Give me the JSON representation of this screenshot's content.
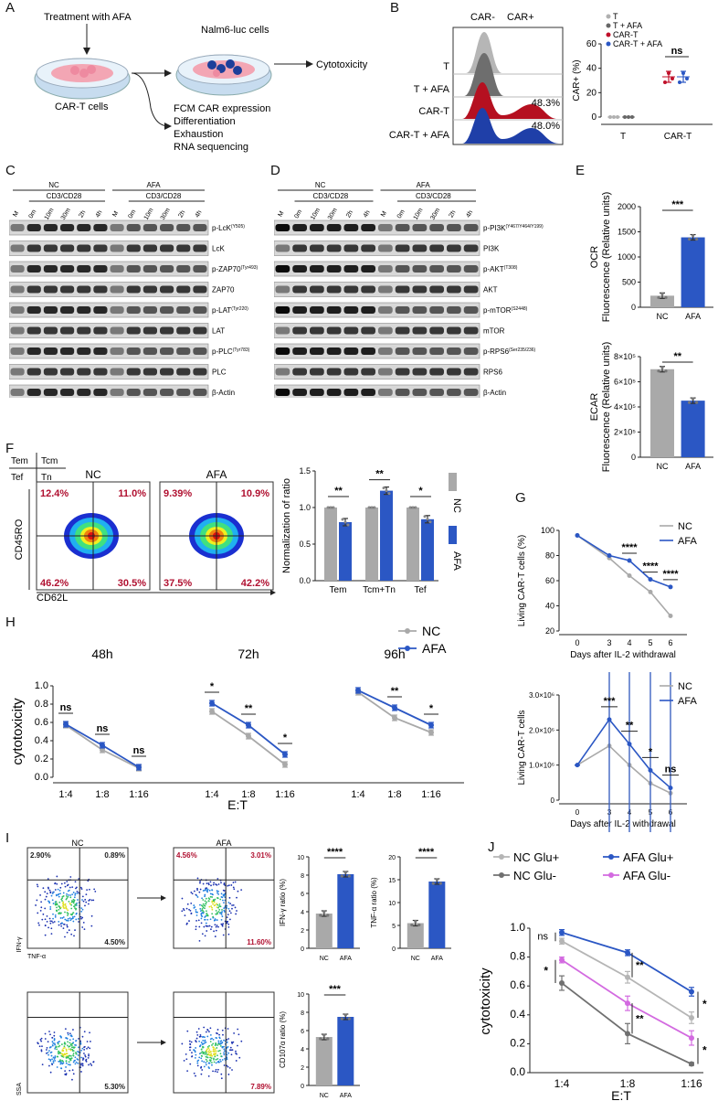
{
  "panels": {
    "A": "A",
    "B": "B",
    "C": "C",
    "D": "D",
    "E": "E",
    "F": "F",
    "G": "G",
    "H": "H",
    "I": "I",
    "J": "J"
  },
  "panel_a": {
    "treatment": "Treatment with AFA",
    "target_cells": "Nalm6-luc cells",
    "car_t": "CAR-T cells",
    "cytotoxicity": "Cytotoxicity",
    "assays": [
      "FCM CAR expression",
      "Differentiation",
      "Exhaustion",
      "RNA sequencing"
    ]
  },
  "panel_b": {
    "gate_labels": [
      "CAR-",
      "CAR+"
    ],
    "rows": [
      {
        "label": "T",
        "pct": ""
      },
      {
        "label": "T + AFA",
        "pct": ""
      },
      {
        "label": "CAR-T",
        "pct": "48.3%"
      },
      {
        "label": "CAR-T + AFA",
        "pct": "48.0%"
      }
    ],
    "colors": {
      "T": "#b0b0b0",
      "T+AFA": "#707070",
      "CAR-T": "#c0102a",
      "CAR-T+AFA": "#1f3fa8"
    }
  },
  "panel_c": {
    "nc": "NC",
    "afa": "AFA",
    "stim": "CD3/CD28",
    "lanes": [
      "M",
      "0m",
      "10m",
      "30m",
      "2h",
      "4h",
      "M",
      "0m",
      "10m",
      "30m",
      "2h",
      "4h"
    ],
    "bands": [
      {
        "name": "p-LcK",
        "sup": "(Y505)"
      },
      {
        "name": "LcK",
        "sup": ""
      },
      {
        "name": "p-ZAP70",
        "sup": "(Tyr493)"
      },
      {
        "name": "ZAP70",
        "sup": ""
      },
      {
        "name": "p-LAT",
        "sup": "(Tyr220)"
      },
      {
        "name": "LAT",
        "sup": ""
      },
      {
        "name": "p-PLC",
        "sup": "(Tyr783)"
      },
      {
        "name": "PLC",
        "sup": ""
      },
      {
        "name": "β-Actin",
        "sup": ""
      }
    ]
  },
  "panel_d": {
    "nc": "NC",
    "afa": "AFA",
    "stim": "CD3/CD28",
    "lanes": [
      "M",
      "0m",
      "10m",
      "30m",
      "2h",
      "4h",
      "M",
      "0m",
      "10m",
      "30m",
      "2h",
      "4h"
    ],
    "bands": [
      {
        "name": "p-PI3K",
        "sup": "(Y467/Y464/Y199)"
      },
      {
        "name": "PI3K",
        "sup": ""
      },
      {
        "name": "p-AKT",
        "sup": "(T308)"
      },
      {
        "name": "AKT",
        "sup": ""
      },
      {
        "name": "p-mTOR",
        "sup": "(S2448)"
      },
      {
        "name": "mTOR",
        "sup": ""
      },
      {
        "name": "p-RPS6",
        "sup": "(Ser235/236)"
      },
      {
        "name": "RPS6",
        "sup": ""
      },
      {
        "name": "β-Actin",
        "sup": ""
      }
    ]
  },
  "panel_f": {
    "quad_key": [
      "Tem",
      "Tcm",
      "Tef",
      "Tn"
    ],
    "plots": [
      {
        "title": "NC",
        "q": [
          "12.4%",
          "11.0%",
          "46.2%",
          "30.5%"
        ]
      },
      {
        "title": "AFA",
        "q": [
          "9.39%",
          "10.9%",
          "37.5%",
          "42.2%"
        ]
      }
    ],
    "yaxis": "CD45RO",
    "xaxis": "CD62L"
  },
  "colors": {
    "nc": "#a9a9a9",
    "afa": "#2b57c4",
    "sig": "#b01030"
  },
  "chart_data": [
    {
      "id": "B-right",
      "type": "scatter",
      "ylabel": "CAR+ (%)",
      "ylim": [
        0,
        60
      ],
      "yticks": [
        0,
        20,
        40,
        60
      ],
      "categories": [
        "T",
        "CAR-T"
      ],
      "legend": [
        "T",
        "T + AFA",
        "CAR-T",
        "CAR-T + AFA"
      ],
      "series": [
        {
          "name": "T",
          "values": [
            0
          ]
        },
        {
          "name": "T + AFA",
          "values": [
            0
          ]
        },
        {
          "name": "CAR-T",
          "values": [
            33
          ]
        },
        {
          "name": "CAR-T + AFA",
          "values": [
            33
          ]
        }
      ],
      "annotation": "ns"
    },
    {
      "id": "E-OCR",
      "type": "bar",
      "ylabel": "OCR",
      "ylabel2": "Fluorescence (Relative units)",
      "ylim": [
        0,
        2000
      ],
      "yticks": [
        "0",
        "500",
        "1000",
        "1500",
        "2000"
      ],
      "categories": [
        "NC",
        "AFA"
      ],
      "values": [
        230,
        1390
      ],
      "annotation": "***"
    },
    {
      "id": "E-ECAR",
      "type": "bar",
      "ylabel": "ECAR",
      "ylabel2": "Fluorescence (Relative units)",
      "ylim": [
        0,
        800000
      ],
      "yticks": [
        "0",
        "2×10⁵",
        "4×10⁵",
        "6×10⁵",
        "8×10⁵"
      ],
      "categories": [
        "NC",
        "AFA"
      ],
      "values": [
        700000,
        450000
      ],
      "annotation": "**"
    },
    {
      "id": "F-bar",
      "type": "bar",
      "ylabel": "Normalization of ratio",
      "ylim": [
        0,
        1.5
      ],
      "yticks": [
        "0.0",
        "0.5",
        "1.0",
        "1.5"
      ],
      "categories": [
        "Tem",
        "Tcm+Tn",
        "Tef"
      ],
      "series": [
        {
          "name": "NC",
          "values": [
            1.0,
            1.0,
            1.0
          ]
        },
        {
          "name": "AFA",
          "values": [
            0.8,
            1.23,
            0.84
          ]
        }
      ],
      "annotations": [
        "**",
        "**",
        "*"
      ],
      "legend": [
        "NC",
        "AFA"
      ]
    },
    {
      "id": "G-top",
      "type": "line",
      "ylabel": "Living CAR-T cells (%)",
      "xlabel": "Days after IL-2 withdrawal",
      "x": [
        "0",
        "3",
        "4",
        "5",
        "6"
      ],
      "ylim": [
        20,
        100
      ],
      "yticks": [
        "20",
        "40",
        "60",
        "80",
        "100"
      ],
      "series": [
        {
          "name": "NC",
          "values": [
            96,
            78,
            64,
            51,
            32
          ]
        },
        {
          "name": "AFA",
          "values": [
            96,
            80,
            76,
            61,
            55
          ]
        }
      ],
      "annotations": [
        "****",
        "****",
        "****"
      ]
    },
    {
      "id": "G-bottom",
      "type": "line",
      "ylabel": "Living CAR-T cells",
      "xlabel": "Days after IL-2 withdrawal",
      "x": [
        "0",
        "3",
        "4",
        "5",
        "6"
      ],
      "ylim": [
        0,
        3000000
      ],
      "yticks": [
        "0",
        "1.0×10⁶",
        "2.0×10⁶",
        "3.0×10⁶"
      ],
      "series": [
        {
          "name": "NC",
          "values": [
            1000000,
            1550000,
            1000000,
            480000,
            200000
          ]
        },
        {
          "name": "AFA",
          "values": [
            1000000,
            2300000,
            1600000,
            850000,
            350000
          ]
        }
      ],
      "annotations": [
        "***",
        "**",
        "*",
        "ns"
      ]
    },
    {
      "id": "H",
      "type": "line",
      "ylabel": "cytotoxicity",
      "xlabel": "E:T",
      "ylim": [
        0,
        1.0
      ],
      "yticks": [
        "0.0",
        "0.2",
        "0.4",
        "0.6",
        "0.8",
        "1.0"
      ],
      "groups": [
        {
          "title": "48h",
          "x": [
            "1:4",
            "1:8",
            "1:16"
          ],
          "NC": [
            0.57,
            0.3,
            0.1
          ],
          "AFA": [
            0.58,
            0.35,
            0.11
          ],
          "annotations": [
            "ns",
            "ns",
            "ns"
          ]
        },
        {
          "title": "72h",
          "x": [
            "1:4",
            "1:8",
            "1:16"
          ],
          "NC": [
            0.72,
            0.45,
            0.14
          ],
          "AFA": [
            0.81,
            0.57,
            0.25
          ],
          "annotations": [
            "*",
            "**",
            "*"
          ]
        },
        {
          "title": "96h",
          "x": [
            "1:4",
            "1:8",
            "1:16"
          ],
          "NC": [
            0.93,
            0.65,
            0.49
          ],
          "AFA": [
            0.95,
            0.76,
            0.57
          ],
          "annotations": [
            "",
            "**",
            "*"
          ]
        }
      ],
      "legend": [
        "NC",
        "AFA"
      ]
    },
    {
      "id": "I-IFN",
      "type": "bar",
      "ylabel": "IFN-γ ratio (%)",
      "ylim": [
        0,
        10
      ],
      "yticks": [
        "0",
        "2",
        "4",
        "6",
        "8",
        "10"
      ],
      "categories": [
        "NC",
        "AFA"
      ],
      "values": [
        3.8,
        8.1
      ],
      "annotation": "****"
    },
    {
      "id": "I-TNF",
      "type": "bar",
      "ylabel": "TNF-α ratio (%)",
      "ylim": [
        0,
        20
      ],
      "yticks": [
        "0",
        "5",
        "10",
        "15",
        "20"
      ],
      "categories": [
        "NC",
        "AFA"
      ],
      "values": [
        5.5,
        14.6
      ],
      "annotation": "****"
    },
    {
      "id": "I-CD107",
      "type": "bar",
      "ylabel": "CD107α ratio (%)",
      "ylim": [
        0,
        10
      ],
      "yticks": [
        "0",
        "2",
        "4",
        "6",
        "8",
        "10"
      ],
      "categories": [
        "NC",
        "AFA"
      ],
      "values": [
        5.3,
        7.5
      ],
      "annotation": "***"
    },
    {
      "id": "J",
      "type": "line",
      "ylabel": "cytotoxicity",
      "xlabel": "E:T",
      "x": [
        "1:4",
        "1:8",
        "1:16"
      ],
      "ylim": [
        0,
        1.0
      ],
      "yticks": [
        "0.0",
        "0.2",
        "0.4",
        "0.6",
        "0.8",
        "1.0"
      ],
      "series": [
        {
          "name": "NC Glu+",
          "values": [
            0.91,
            0.66,
            0.38
          ]
        },
        {
          "name": "AFA Glu+",
          "values": [
            0.97,
            0.83,
            0.56
          ]
        },
        {
          "name": "NC Glu-",
          "values": [
            0.62,
            0.27,
            0.06
          ]
        },
        {
          "name": "AFA Glu-",
          "values": [
            0.78,
            0.48,
            0.24
          ]
        }
      ],
      "annotations": [
        "ns",
        "*",
        "**",
        "**",
        "*",
        "*"
      ]
    }
  ],
  "panel_i": {
    "plots_top": [
      {
        "title": "NC",
        "ul": "2.90%",
        "ur": "0.89%",
        "lr": "4.50%"
      },
      {
        "title": "AFA",
        "ul": "4.56%",
        "ur": "3.01%",
        "lr": "11.60%"
      }
    ],
    "plots_bottom": [
      {
        "lr": "5.30%"
      },
      {
        "lr": "7.89%"
      }
    ],
    "top_y": "IFN-γ",
    "top_x": "TNF-α",
    "bottom_y": "SSA"
  }
}
